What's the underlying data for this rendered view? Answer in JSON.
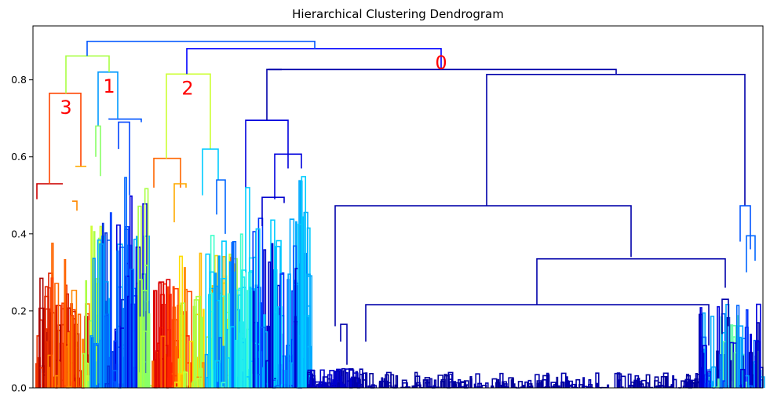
{
  "chart_data": {
    "type": "dendrogram",
    "title": "Hierarchical Clustering Dendrogram",
    "xlabel": "",
    "ylabel": "",
    "ylim": [
      0,
      0.94
    ],
    "yticks": [
      "0.0",
      "0.2",
      "0.4",
      "0.6",
      "0.8"
    ],
    "ytick_values": [
      0.0,
      0.2,
      0.4,
      0.6,
      0.8
    ],
    "grid": false,
    "colormap": "jet",
    "label_color": "#ff0000",
    "cluster_labels": [
      {
        "text": "0",
        "height": 0.881
      },
      {
        "text": "1",
        "height": 0.82
      },
      {
        "text": "2",
        "height": 0.815
      },
      {
        "text": "3",
        "height": 0.765
      }
    ],
    "merges": [
      {
        "height": 0.9,
        "color": "#0055ff",
        "children": [
          "left-group",
          "right-group"
        ]
      },
      {
        "height": 0.881,
        "color": "#0000ff",
        "children": [
          "cluster-2",
          "cluster-0"
        ]
      },
      {
        "height": 0.862,
        "color": "#aaff44",
        "children": [
          "cluster-3",
          "cluster-1"
        ]
      },
      {
        "height": 0.827,
        "color": "#0000aa",
        "children": [
          "cluster-0-left",
          "cluster-0-right"
        ]
      },
      {
        "height": 0.82,
        "color": "#0099ff",
        "children": [
          "cluster-1"
        ]
      },
      {
        "height": 0.815,
        "color": "#ccff33",
        "children": [
          "cluster-2"
        ]
      },
      {
        "height": 0.814,
        "color": "#0000aa",
        "children": [
          "cluster-0-main"
        ]
      },
      {
        "height": 0.765,
        "color": "#ff4400",
        "children": [
          "cluster-3"
        ]
      },
      {
        "height": 0.698,
        "color": "#0055ff",
        "children": [
          "cluster-1-sub"
        ]
      },
      {
        "height": 0.695,
        "color": "#0000dd",
        "children": [
          "cluster-0-left-sub"
        ]
      },
      {
        "height": 0.607,
        "color": "#0000dd",
        "children": [
          "cluster-0-left-inner"
        ]
      },
      {
        "height": 0.62,
        "color": "#00ccff",
        "children": [
          "cluster-2-sub"
        ]
      },
      {
        "height": 0.596,
        "color": "#ff6600",
        "children": [
          "cluster-2-left"
        ]
      },
      {
        "height": 0.53,
        "color": "#cc0000",
        "children": [
          "cluster-3-left"
        ]
      },
      {
        "height": 0.473,
        "color": "#0000aa",
        "children": [
          "main-block"
        ]
      },
      {
        "height": 0.473,
        "color": "#0055ff",
        "children": [
          "far-right"
        ]
      },
      {
        "height": 0.335,
        "color": "#0000aa",
        "children": [
          "main-right"
        ]
      },
      {
        "height": 0.216,
        "color": "#0000aa",
        "children": [
          "main-right-lower"
        ]
      }
    ]
  }
}
